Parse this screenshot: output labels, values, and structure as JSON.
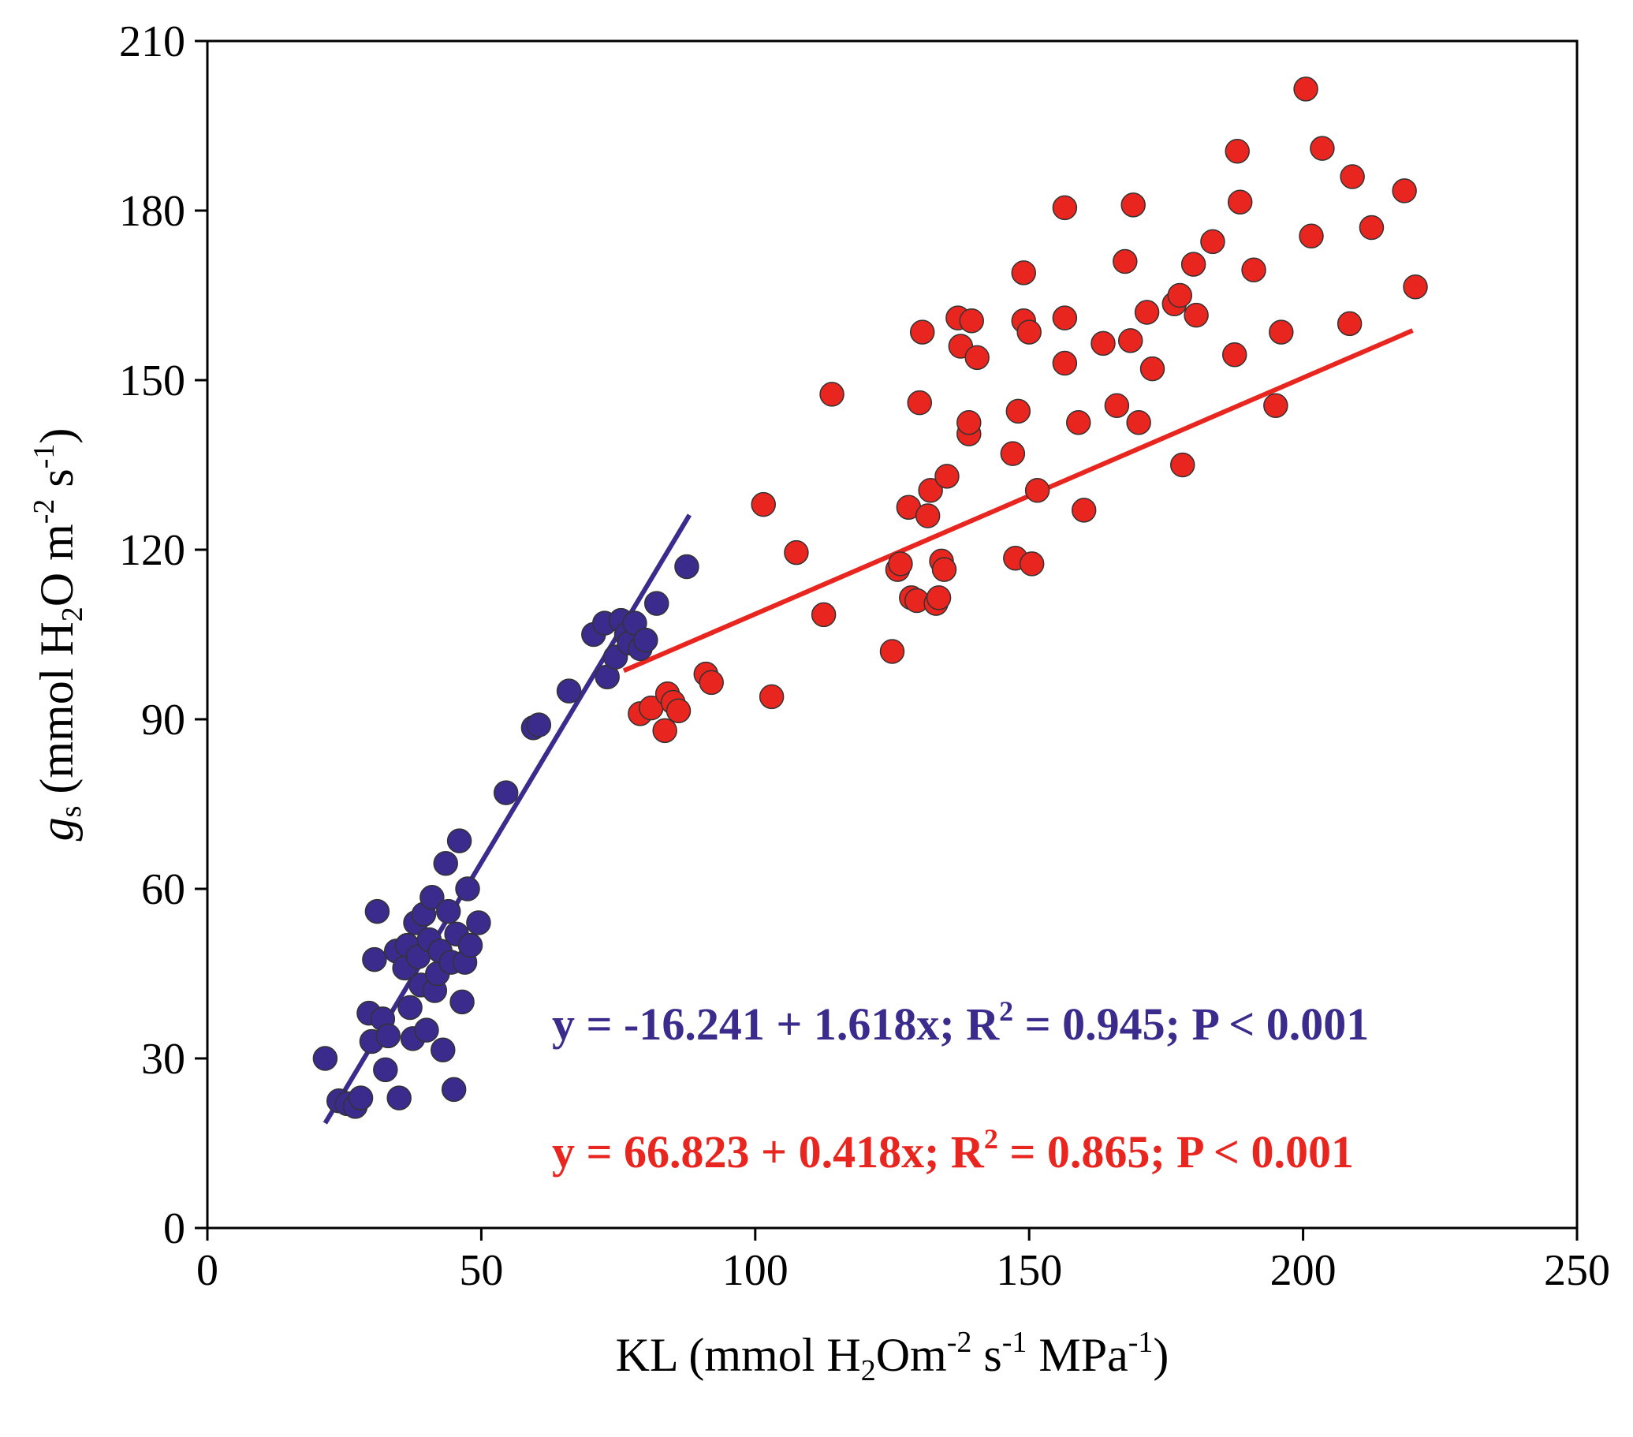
{
  "chart_data": {
    "type": "scatter",
    "title": "",
    "xlabel": {
      "main": "KL (mmol H",
      "sub1": "2",
      "mid": "Om",
      "sup1": "-2",
      "mid2": " s",
      "sup2": "-1",
      "mid3": " MPa",
      "sup3": "-1",
      "end": ")"
    },
    "ylabel": {
      "gs": "g",
      "gs_sub": "s",
      "open": " (mmol H",
      "sub1": "2",
      "mid": "O m",
      "sup1": "-2",
      "mid2": " s",
      "sup2": "-1",
      "end": ")"
    },
    "xlim": [
      0,
      250
    ],
    "ylim": [
      0,
      210
    ],
    "xticks": [
      0,
      50,
      100,
      150,
      200,
      250
    ],
    "yticks": [
      0,
      30,
      60,
      90,
      120,
      150,
      180,
      210
    ],
    "series": [
      {
        "name": "blue",
        "color": "#3b2b8c",
        "equation": {
          "pre": "y = -16.241 + 1.618x; R",
          "sup": "2",
          "post": " = 0.945; P < 0.001"
        },
        "fit": {
          "intercept": -16.241,
          "slope": 1.618,
          "x_range": [
            21.5,
            88
          ]
        },
        "points": [
          [
            21.5,
            30
          ],
          [
            24,
            22.5
          ],
          [
            25.5,
            22
          ],
          [
            27,
            21.5
          ],
          [
            28,
            23
          ],
          [
            29.5,
            38
          ],
          [
            30,
            33
          ],
          [
            30.5,
            47.5
          ],
          [
            31,
            56
          ],
          [
            32,
            37
          ],
          [
            32.5,
            28
          ],
          [
            33,
            34
          ],
          [
            34.5,
            49
          ],
          [
            35,
            23
          ],
          [
            36,
            46
          ],
          [
            36.5,
            50
          ],
          [
            37,
            39
          ],
          [
            37.5,
            33.5
          ],
          [
            38,
            54
          ],
          [
            38.5,
            48
          ],
          [
            39,
            43
          ],
          [
            39.5,
            55.5
          ],
          [
            40,
            35
          ],
          [
            40.5,
            51
          ],
          [
            41,
            58.5
          ],
          [
            41.5,
            42
          ],
          [
            42,
            45
          ],
          [
            42.5,
            49
          ],
          [
            43,
            31.5
          ],
          [
            43.5,
            64.5
          ],
          [
            44,
            56
          ],
          [
            44.5,
            47
          ],
          [
            45,
            24.5
          ],
          [
            45.5,
            52
          ],
          [
            46,
            68.5
          ],
          [
            46.5,
            40
          ],
          [
            47,
            47
          ],
          [
            47.5,
            60
          ],
          [
            48,
            50
          ],
          [
            49.5,
            54
          ],
          [
            54.5,
            77
          ],
          [
            59.5,
            88.5
          ],
          [
            60.5,
            89
          ],
          [
            66,
            95
          ],
          [
            70.5,
            105
          ],
          [
            72.5,
            107
          ],
          [
            73,
            97.5
          ],
          [
            74.5,
            101
          ],
          [
            75.5,
            107.5
          ],
          [
            76.5,
            105
          ],
          [
            77,
            103.5
          ],
          [
            78,
            107
          ],
          [
            79,
            102.5
          ],
          [
            80,
            104
          ],
          [
            82,
            110.5
          ],
          [
            87.5,
            117
          ]
        ]
      },
      {
        "name": "red",
        "color": "#e8251f",
        "equation": {
          "pre": "y = 66.823 + 0.418x; R",
          "sup": "2",
          "post": " = 0.865; P < 0.001"
        },
        "fit": {
          "intercept": 66.823,
          "slope": 0.418,
          "x_range": [
            76,
            220
          ]
        },
        "points": [
          [
            79,
            91
          ],
          [
            81,
            92
          ],
          [
            83.5,
            88
          ],
          [
            84,
            94.5
          ],
          [
            85,
            93
          ],
          [
            86,
            91.5
          ],
          [
            91,
            98
          ],
          [
            92,
            96.5
          ],
          [
            101.5,
            128
          ],
          [
            103,
            94
          ],
          [
            107.5,
            119.5
          ],
          [
            112.5,
            108.5
          ],
          [
            114,
            147.5
          ],
          [
            125,
            102
          ],
          [
            126,
            116.5
          ],
          [
            126.5,
            117.5
          ],
          [
            128,
            127.5
          ],
          [
            128.5,
            111.5
          ],
          [
            129.5,
            111
          ],
          [
            130,
            146
          ],
          [
            130.5,
            158.5
          ],
          [
            131.5,
            126
          ],
          [
            132,
            130.5
          ],
          [
            133,
            110.5
          ],
          [
            133.5,
            111.5
          ],
          [
            134,
            118
          ],
          [
            134.5,
            116.5
          ],
          [
            135,
            133
          ],
          [
            137,
            161
          ],
          [
            137.5,
            156
          ],
          [
            139,
            140.5
          ],
          [
            139,
            142.5
          ],
          [
            139.5,
            160.5
          ],
          [
            140.5,
            154
          ],
          [
            147,
            137
          ],
          [
            147.5,
            118.5
          ],
          [
            148,
            144.5
          ],
          [
            149,
            169
          ],
          [
            149,
            160.5
          ],
          [
            150,
            158.5
          ],
          [
            150.5,
            117.5
          ],
          [
            151.5,
            130.5
          ],
          [
            156.5,
            180.5
          ],
          [
            156.5,
            161
          ],
          [
            156.5,
            153
          ],
          [
            159,
            142.5
          ],
          [
            160,
            127
          ],
          [
            163.5,
            156.5
          ],
          [
            166,
            145.5
          ],
          [
            167.5,
            171
          ],
          [
            168.5,
            157
          ],
          [
            169,
            181
          ],
          [
            170,
            142.5
          ],
          [
            171.5,
            162
          ],
          [
            172.5,
            152
          ],
          [
            176.5,
            163.5
          ],
          [
            177.5,
            165
          ],
          [
            178,
            135
          ],
          [
            180,
            170.5
          ],
          [
            180.5,
            161.5
          ],
          [
            183.5,
            174.5
          ],
          [
            187.5,
            154.5
          ],
          [
            188,
            190.5
          ],
          [
            188.5,
            181.5
          ],
          [
            191,
            169.5
          ],
          [
            195,
            145.5
          ],
          [
            196,
            158.5
          ],
          [
            200.5,
            201.5
          ],
          [
            201.5,
            175.5
          ],
          [
            203.5,
            191
          ],
          [
            208.5,
            160
          ],
          [
            209,
            186
          ],
          [
            212.5,
            177
          ],
          [
            218.5,
            183.5
          ],
          [
            220.5,
            166.5
          ]
        ]
      }
    ]
  }
}
